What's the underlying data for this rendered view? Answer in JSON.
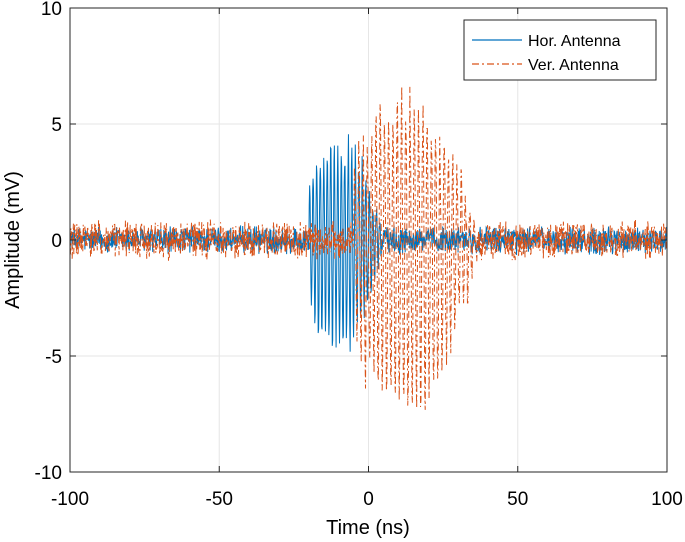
{
  "chart_data": {
    "type": "line",
    "title": "",
    "xlabel": "Time (ns)",
    "ylabel": "Amplitude (mV)",
    "xlim": [
      -100,
      100
    ],
    "ylim": [
      -10,
      10
    ],
    "xticks": [
      -100,
      -50,
      0,
      50,
      100
    ],
    "yticks": [
      -10,
      -5,
      0,
      5,
      10
    ],
    "xtick_labels": [
      "-100",
      "-50",
      "0",
      "50",
      "100"
    ],
    "ytick_labels": [
      "-10",
      "-5",
      "0",
      "5",
      "10"
    ],
    "grid": true,
    "legend_position": "top-right",
    "series": [
      {
        "name": "Hor. Antenna",
        "color": "#0072BD",
        "line_style": "solid",
        "envelope": {
          "noise_amplitude_mv": 0.5,
          "pulse_center_ns": -10,
          "pulse_peak_mv": 4.7,
          "pulse_trough_mv": -5.2,
          "pulse_start_ns": -20,
          "pulse_end_ns": 10
        }
      },
      {
        "name": "Ver. Antenna",
        "color": "#D95319",
        "line_style": "dash-dot",
        "envelope": {
          "noise_amplitude_mv": 0.7,
          "pulse_center_ns": 12,
          "pulse_peak_mv": 6.4,
          "pulse_trough_mv": -8.1,
          "pulse_start_ns": -5,
          "pulse_end_ns": 45
        }
      }
    ]
  }
}
